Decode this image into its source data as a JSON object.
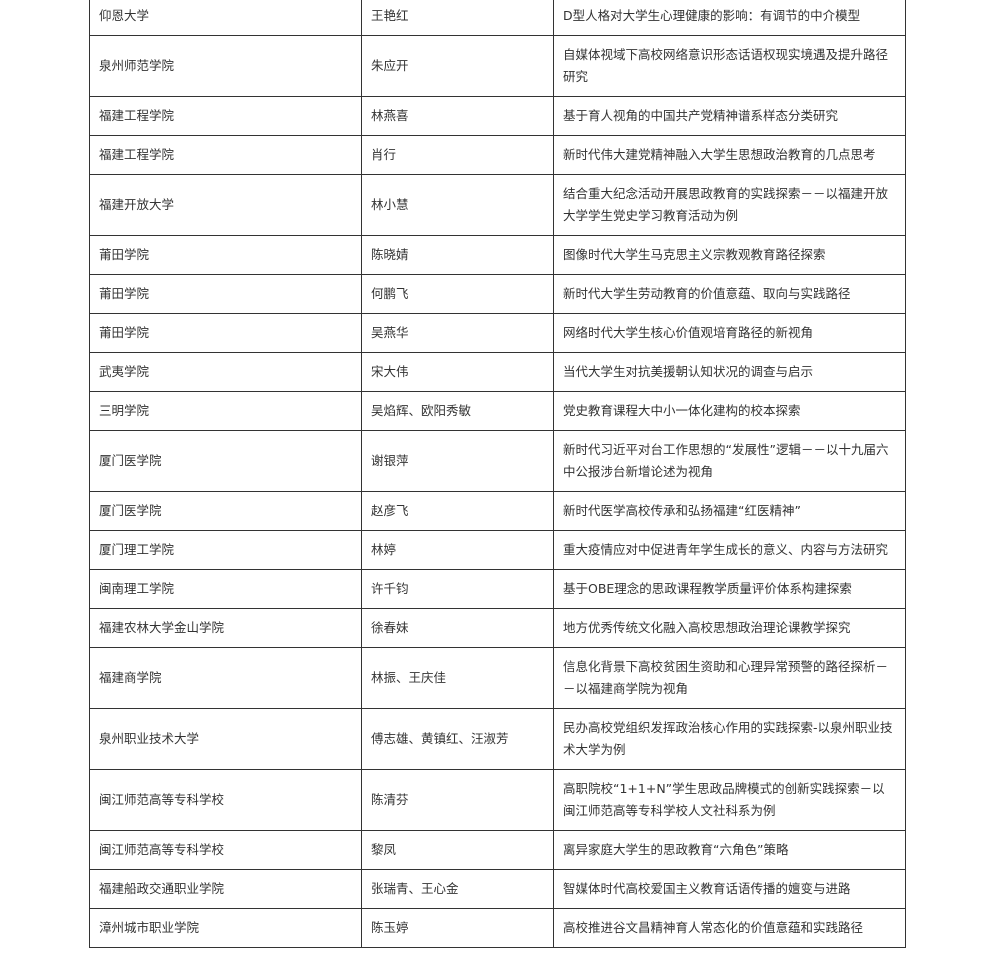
{
  "table": {
    "rows": [
      [
        "仰恩大学",
        "王艳红",
        "D型人格对大学生心理健康的影响：有调节的中介模型"
      ],
      [
        "泉州师范学院",
        "朱应开",
        "自媒体视域下高校网络意识形态话语权现实境遇及提升路径研究"
      ],
      [
        "福建工程学院",
        "林燕喜",
        "基于育人视角的中国共产党精神谱系样态分类研究"
      ],
      [
        "福建工程学院",
        "肖行",
        "新时代伟大建党精神融入大学生思想政治教育的几点思考"
      ],
      [
        "福建开放大学",
        "林小慧",
        "结合重大纪念活动开展思政教育的实践探索－－以福建开放大学学生党史学习教育活动为例"
      ],
      [
        "莆田学院",
        "陈晓婧",
        "图像时代大学生马克思主义宗教观教育路径探索"
      ],
      [
        "莆田学院",
        "何鹏飞",
        "新时代大学生劳动教育的价值意蕴、取向与实践路径"
      ],
      [
        "莆田学院",
        "吴燕华",
        "网络时代大学生核心价值观培育路径的新视角"
      ],
      [
        "武夷学院",
        "宋大伟",
        "当代大学生对抗美援朝认知状况的调查与启示"
      ],
      [
        "三明学院",
        "吴焰辉、欧阳秀敏",
        "党史教育课程大中小一体化建构的校本探索"
      ],
      [
        "厦门医学院",
        "谢银萍",
        "新时代习近平对台工作思想的“发展性”逻辑－－以十九届六中公报涉台新增论述为视角"
      ],
      [
        "厦门医学院",
        "赵彦飞",
        "新时代医学高校传承和弘扬福建“红医精神”"
      ],
      [
        "厦门理工学院",
        "林婷",
        "重大疫情应对中促进青年学生成长的意义、内容与方法研究"
      ],
      [
        "闽南理工学院",
        "许千钧",
        "基于OBE理念的思政课程教学质量评价体系构建探索"
      ],
      [
        "福建农林大学金山学院",
        "徐春妹",
        "地方优秀传统文化融入高校思想政治理论课教学探究"
      ],
      [
        "福建商学院",
        "林振、王庆佳",
        "信息化背景下高校贫困生资助和心理异常预警的路径探析－－以福建商学院为视角"
      ],
      [
        "泉州职业技术大学",
        "傅志雄、黄镇红、汪淑芳",
        "民办高校党组织发挥政治核心作用的实践探索-以泉州职业技术大学为例"
      ],
      [
        "闽江师范高等专科学校",
        "陈清芬",
        "高职院校“1+1+N”学生思政品牌模式的创新实践探索－以闽江师范高等专科学校人文社科系为例"
      ],
      [
        "闽江师范高等专科学校",
        "黎凤",
        "离异家庭大学生的思政教育“六角色”策略"
      ],
      [
        "福建船政交通职业学院",
        "张瑞青、王心金",
        "智媒体时代高校爱国主义教育话语传播的嬗变与进路"
      ],
      [
        "漳州城市职业学院",
        "陈玉婷",
        "高校推进谷文昌精神育人常态化的价值意蕴和实践路径"
      ]
    ]
  }
}
